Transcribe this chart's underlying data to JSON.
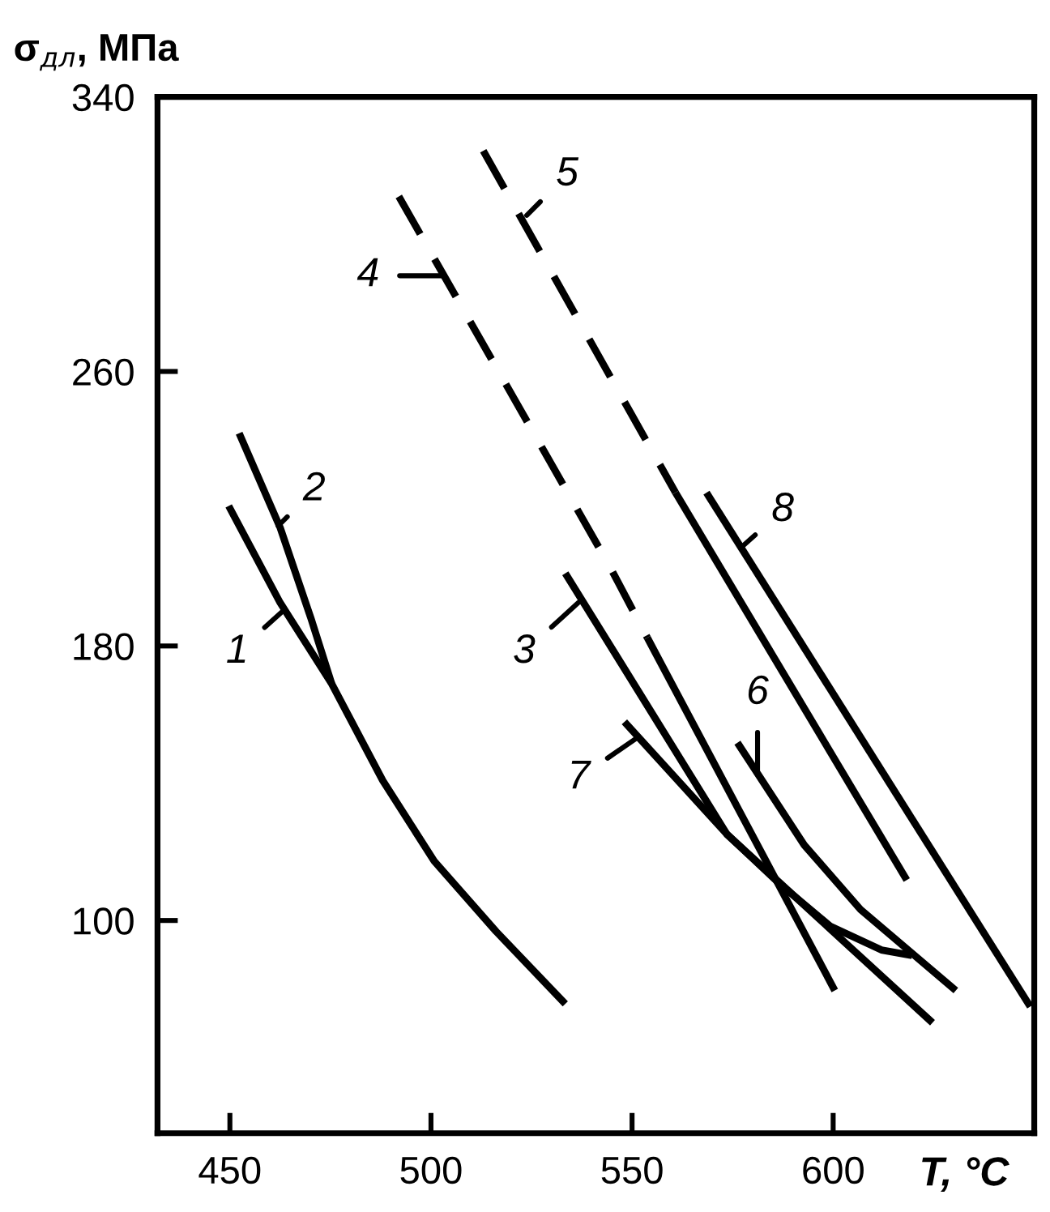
{
  "chart_data": {
    "type": "line",
    "xlabel": "T, °C",
    "ylabel": "σ$_{дл}$, МПа",
    "xlim": [
      432,
      650
    ],
    "ylim": [
      38,
      340
    ],
    "xticks": [
      450,
      500,
      550,
      600
    ],
    "yticks": [
      100,
      180,
      260,
      340
    ],
    "grid": false,
    "legend": false,
    "marker": "none",
    "series": [
      {
        "color": "#000000",
        "line_style": "solid",
        "x": [
          449.7,
          462.5,
          475.3,
          488,
          500.8,
          516.2,
          533.4
        ],
        "values": [
          220.8,
          192.6,
          169,
          140.8,
          117.3,
          96.8,
          75.7
        ]
      },
      {
        "color": "#000000",
        "line_style": "solid",
        "x": [
          452.3,
          462.5,
          470.2,
          475.3
        ],
        "values": [
          242,
          214.5,
          187.9,
          169
        ]
      },
      {
        "color": "#000000",
        "line_style": "solid",
        "x": [
          533.4,
          573.6,
          624.7
        ],
        "values": [
          201.2,
          125.1,
          70.2
        ]
      },
      {
        "color": "#000000",
        "line_style": "dashed",
        "x": [
          492,
          544.3,
          553.8
        ],
        "values": [
          311,
          203.5,
          182.4
        ]
      },
      {
        "color": "#000000",
        "line_style": "solid",
        "x": [
          553.8,
          600.4
        ],
        "values": [
          182.4,
          79.6
        ]
      },
      {
        "color": "#000000",
        "line_style": "dashed",
        "x": [
          513,
          560.8
        ],
        "values": [
          324.3,
          224.7
        ]
      },
      {
        "color": "#000000",
        "line_style": "solid",
        "x": [
          560.8,
          618.3
        ],
        "values": [
          224.7,
          111.8
        ]
      },
      {
        "color": "#000000",
        "line_style": "solid",
        "x": [
          576.2,
          592.8,
          606.8,
          630.5
        ],
        "values": [
          151.8,
          122,
          103.2,
          79.6
        ]
      },
      {
        "color": "#000000",
        "line_style": "solid",
        "x": [
          548.1,
          573.6,
          586.4,
          599.2,
          612,
          619.6
        ],
        "values": [
          157.9,
          125.1,
          111,
          98.4,
          91.4,
          89.8
        ]
      },
      {
        "color": "#000000",
        "line_style": "solid",
        "x": [
          568.5,
          649
        ],
        "values": [
          224.7,
          74.9
        ]
      }
    ],
    "annotations": [
      {
        "text": "1",
        "x": 463,
        "y": 190
      },
      {
        "text": "2",
        "x": 462,
        "y": 215
      },
      {
        "text": "3",
        "x": 536.6,
        "y": 192.6
      },
      {
        "text": "4",
        "x": 503.4,
        "y": 287.9
      },
      {
        "text": "5",
        "x": 523.8,
        "y": 305.5
      },
      {
        "text": "6",
        "x": 581.2,
        "y": 143.9
      },
      {
        "text": "7",
        "x": 551.3,
        "y": 153.3
      },
      {
        "text": "8",
        "x": 577.4,
        "y": 209
      }
    ]
  }
}
